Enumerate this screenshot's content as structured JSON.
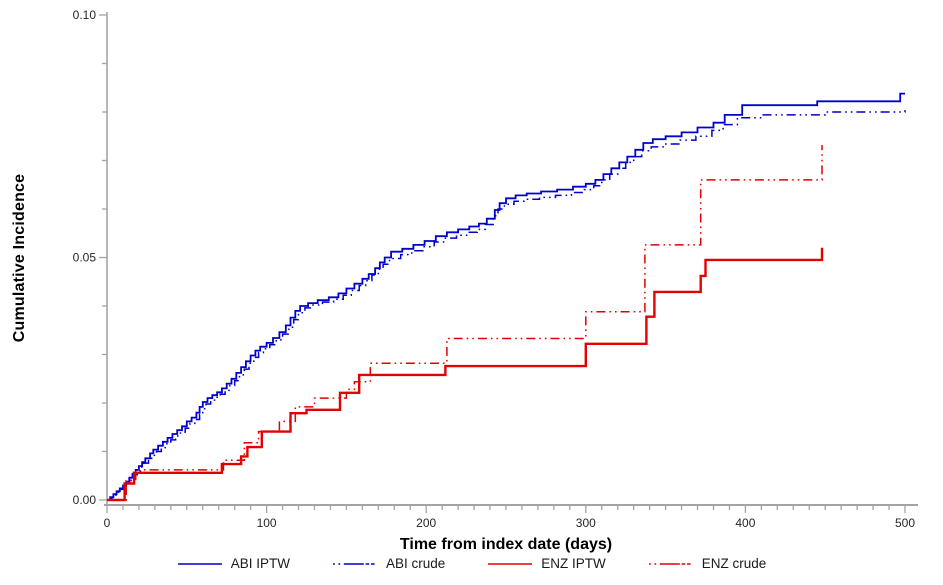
{
  "chart_data": {
    "type": "line",
    "subtype": "step",
    "title": "",
    "xlabel": "Time from index date (days)",
    "ylabel": "Cumulative Incidence",
    "xlim": [
      0,
      500
    ],
    "ylim": [
      0,
      0.1
    ],
    "x_major_ticks": [
      0,
      100,
      200,
      300,
      400,
      500
    ],
    "x_minor_step": 10,
    "y_major_ticks": [
      0,
      0.05,
      0.1
    ],
    "y_tick_labels": [
      "0.00",
      "0.05",
      "0.10"
    ],
    "y_minor_step": 0.01,
    "grid": false,
    "legend_position": "bottom",
    "axis_color": "#a3a3a3",
    "series": [
      {
        "name": "ABI IPTW",
        "color": "#0000cc",
        "line_style": "solid",
        "line_width": 1.8,
        "points": [
          [
            0,
            0
          ],
          [
            2,
            0.0006
          ],
          [
            4,
            0.0012
          ],
          [
            6,
            0.0018
          ],
          [
            8,
            0.0024
          ],
          [
            10,
            0.003
          ],
          [
            12,
            0.0038
          ],
          [
            14,
            0.0046
          ],
          [
            16,
            0.0054
          ],
          [
            18,
            0.0062
          ],
          [
            20,
            0.007
          ],
          [
            22,
            0.0078
          ],
          [
            24,
            0.0086
          ],
          [
            27,
            0.0096
          ],
          [
            29,
            0.0104
          ],
          [
            32,
            0.0112
          ],
          [
            35,
            0.012
          ],
          [
            38,
            0.0128
          ],
          [
            41,
            0.0136
          ],
          [
            44,
            0.0144
          ],
          [
            47,
            0.0152
          ],
          [
            50,
            0.0162
          ],
          [
            53,
            0.017
          ],
          [
            56,
            0.018
          ],
          [
            58,
            0.0192
          ],
          [
            60,
            0.0202
          ],
          [
            63,
            0.021
          ],
          [
            66,
            0.0216
          ],
          [
            69,
            0.0222
          ],
          [
            72,
            0.023
          ],
          [
            75,
            0.024
          ],
          [
            78,
            0.025
          ],
          [
            81,
            0.0262
          ],
          [
            84,
            0.0274
          ],
          [
            87,
            0.0286
          ],
          [
            90,
            0.0298
          ],
          [
            93,
            0.0308
          ],
          [
            96,
            0.0316
          ],
          [
            100,
            0.0324
          ],
          [
            104,
            0.0334
          ],
          [
            108,
            0.0346
          ],
          [
            112,
            0.036
          ],
          [
            115,
            0.0376
          ],
          [
            118,
            0.039
          ],
          [
            121,
            0.04
          ],
          [
            126,
            0.0406
          ],
          [
            132,
            0.0412
          ],
          [
            139,
            0.0418
          ],
          [
            145,
            0.0426
          ],
          [
            150,
            0.0436
          ],
          [
            155,
            0.0446
          ],
          [
            160,
            0.0456
          ],
          [
            164,
            0.0466
          ],
          [
            168,
            0.0478
          ],
          [
            171,
            0.049
          ],
          [
            174,
            0.05
          ],
          [
            178,
            0.0512
          ],
          [
            185,
            0.0518
          ],
          [
            192,
            0.0526
          ],
          [
            199,
            0.0534
          ],
          [
            206,
            0.0544
          ],
          [
            213,
            0.0552
          ],
          [
            220,
            0.0558
          ],
          [
            227,
            0.0564
          ],
          [
            233,
            0.057
          ],
          [
            238,
            0.058
          ],
          [
            243,
            0.0598
          ],
          [
            246,
            0.0612
          ],
          [
            250,
            0.0622
          ],
          [
            256,
            0.0628
          ],
          [
            263,
            0.0632
          ],
          [
            272,
            0.0636
          ],
          [
            282,
            0.064
          ],
          [
            292,
            0.0646
          ],
          [
            300,
            0.0652
          ],
          [
            306,
            0.066
          ],
          [
            311,
            0.0672
          ],
          [
            316,
            0.0684
          ],
          [
            321,
            0.0696
          ],
          [
            326,
            0.0708
          ],
          [
            331,
            0.0722
          ],
          [
            336,
            0.0736
          ],
          [
            342,
            0.0744
          ],
          [
            350,
            0.075
          ],
          [
            360,
            0.0758
          ],
          [
            370,
            0.0768
          ],
          [
            380,
            0.0778
          ],
          [
            387,
            0.0794
          ],
          [
            398,
            0.0814
          ],
          [
            445,
            0.0822
          ],
          [
            497,
            0.0838
          ],
          [
            500,
            0.0838
          ]
        ]
      },
      {
        "name": "ABI crude",
        "color": "#0000cc",
        "line_style": "dash-dot-dot",
        "line_width": 1.5,
        "points": [
          [
            0,
            0
          ],
          [
            3,
            0.0005
          ],
          [
            5,
            0.001
          ],
          [
            7,
            0.0016
          ],
          [
            9,
            0.0022
          ],
          [
            11,
            0.0028
          ],
          [
            13,
            0.0036
          ],
          [
            15,
            0.0044
          ],
          [
            17,
            0.0052
          ],
          [
            19,
            0.006
          ],
          [
            21,
            0.0068
          ],
          [
            23,
            0.0076
          ],
          [
            26,
            0.0084
          ],
          [
            28,
            0.0092
          ],
          [
            31,
            0.01
          ],
          [
            34,
            0.0108
          ],
          [
            37,
            0.0116
          ],
          [
            40,
            0.0124
          ],
          [
            43,
            0.0132
          ],
          [
            46,
            0.014
          ],
          [
            49,
            0.0148
          ],
          [
            52,
            0.0158
          ],
          [
            55,
            0.0166
          ],
          [
            58,
            0.0176
          ],
          [
            60,
            0.0188
          ],
          [
            62,
            0.0198
          ],
          [
            65,
            0.0206
          ],
          [
            68,
            0.0212
          ],
          [
            71,
            0.0218
          ],
          [
            74,
            0.0226
          ],
          [
            77,
            0.0236
          ],
          [
            80,
            0.0246
          ],
          [
            83,
            0.0258
          ],
          [
            86,
            0.027
          ],
          [
            89,
            0.0282
          ],
          [
            92,
            0.0294
          ],
          [
            95,
            0.0304
          ],
          [
            98,
            0.0312
          ],
          [
            102,
            0.032
          ],
          [
            106,
            0.033
          ],
          [
            110,
            0.0342
          ],
          [
            114,
            0.0356
          ],
          [
            117,
            0.0372
          ],
          [
            120,
            0.0386
          ],
          [
            124,
            0.0396
          ],
          [
            129,
            0.0402
          ],
          [
            135,
            0.0408
          ],
          [
            142,
            0.0414
          ],
          [
            148,
            0.0422
          ],
          [
            153,
            0.0432
          ],
          [
            158,
            0.0442
          ],
          [
            162,
            0.0452
          ],
          [
            166,
            0.0464
          ],
          [
            170,
            0.0476
          ],
          [
            173,
            0.0486
          ],
          [
            177,
            0.0498
          ],
          [
            184,
            0.0506
          ],
          [
            191,
            0.0514
          ],
          [
            198,
            0.0522
          ],
          [
            205,
            0.0532
          ],
          [
            212,
            0.054
          ],
          [
            219,
            0.0546
          ],
          [
            226,
            0.0552
          ],
          [
            232,
            0.0558
          ],
          [
            237,
            0.0568
          ],
          [
            242,
            0.0586
          ],
          [
            245,
            0.06
          ],
          [
            249,
            0.061
          ],
          [
            255,
            0.0616
          ],
          [
            262,
            0.062
          ],
          [
            271,
            0.0624
          ],
          [
            281,
            0.0628
          ],
          [
            291,
            0.0634
          ],
          [
            299,
            0.064
          ],
          [
            305,
            0.0648
          ],
          [
            310,
            0.066
          ],
          [
            315,
            0.0672
          ],
          [
            320,
            0.0684
          ],
          [
            325,
            0.0696
          ],
          [
            330,
            0.0708
          ],
          [
            335,
            0.072
          ],
          [
            341,
            0.0728
          ],
          [
            349,
            0.0734
          ],
          [
            359,
            0.0742
          ],
          [
            369,
            0.075
          ],
          [
            379,
            0.0762
          ],
          [
            386,
            0.0774
          ],
          [
            395,
            0.0788
          ],
          [
            410,
            0.0794
          ],
          [
            450,
            0.08
          ],
          [
            500,
            0.0804
          ]
        ]
      },
      {
        "name": "ENZ IPTW",
        "color": "#e30000",
        "line_style": "solid",
        "line_width": 2.4,
        "points": [
          [
            0,
            0
          ],
          [
            11,
            0.0034
          ],
          [
            17,
            0.0056
          ],
          [
            72,
            0.0074
          ],
          [
            84,
            0.009
          ],
          [
            88,
            0.0109
          ],
          [
            97,
            0.0141
          ],
          [
            115,
            0.0179
          ],
          [
            125,
            0.0186
          ],
          [
            146,
            0.0221
          ],
          [
            158,
            0.0258
          ],
          [
            212,
            0.0276
          ],
          [
            300,
            0.0322
          ],
          [
            338,
            0.0378
          ],
          [
            343,
            0.0429
          ],
          [
            372,
            0.0462
          ],
          [
            375,
            0.0495
          ],
          [
            448,
            0.052
          ]
        ]
      },
      {
        "name": "ENZ crude",
        "color": "#e30000",
        "line_style": "dash-dot-dot",
        "line_width": 1.5,
        "points": [
          [
            0,
            0
          ],
          [
            12,
            0.004
          ],
          [
            18,
            0.0062
          ],
          [
            73,
            0.0082
          ],
          [
            86,
            0.0118
          ],
          [
            95,
            0.0141
          ],
          [
            108,
            0.0162
          ],
          [
            118,
            0.0192
          ],
          [
            130,
            0.021
          ],
          [
            150,
            0.0228
          ],
          [
            155,
            0.0244
          ],
          [
            165,
            0.0282
          ],
          [
            213,
            0.0333
          ],
          [
            300,
            0.0388
          ],
          [
            337,
            0.0526
          ],
          [
            372,
            0.066
          ],
          [
            448,
            0.0732
          ]
        ]
      }
    ]
  },
  "colors": {
    "background": "#ffffff",
    "tick_label": "#262626",
    "legend_text": "#1a1a1a"
  }
}
